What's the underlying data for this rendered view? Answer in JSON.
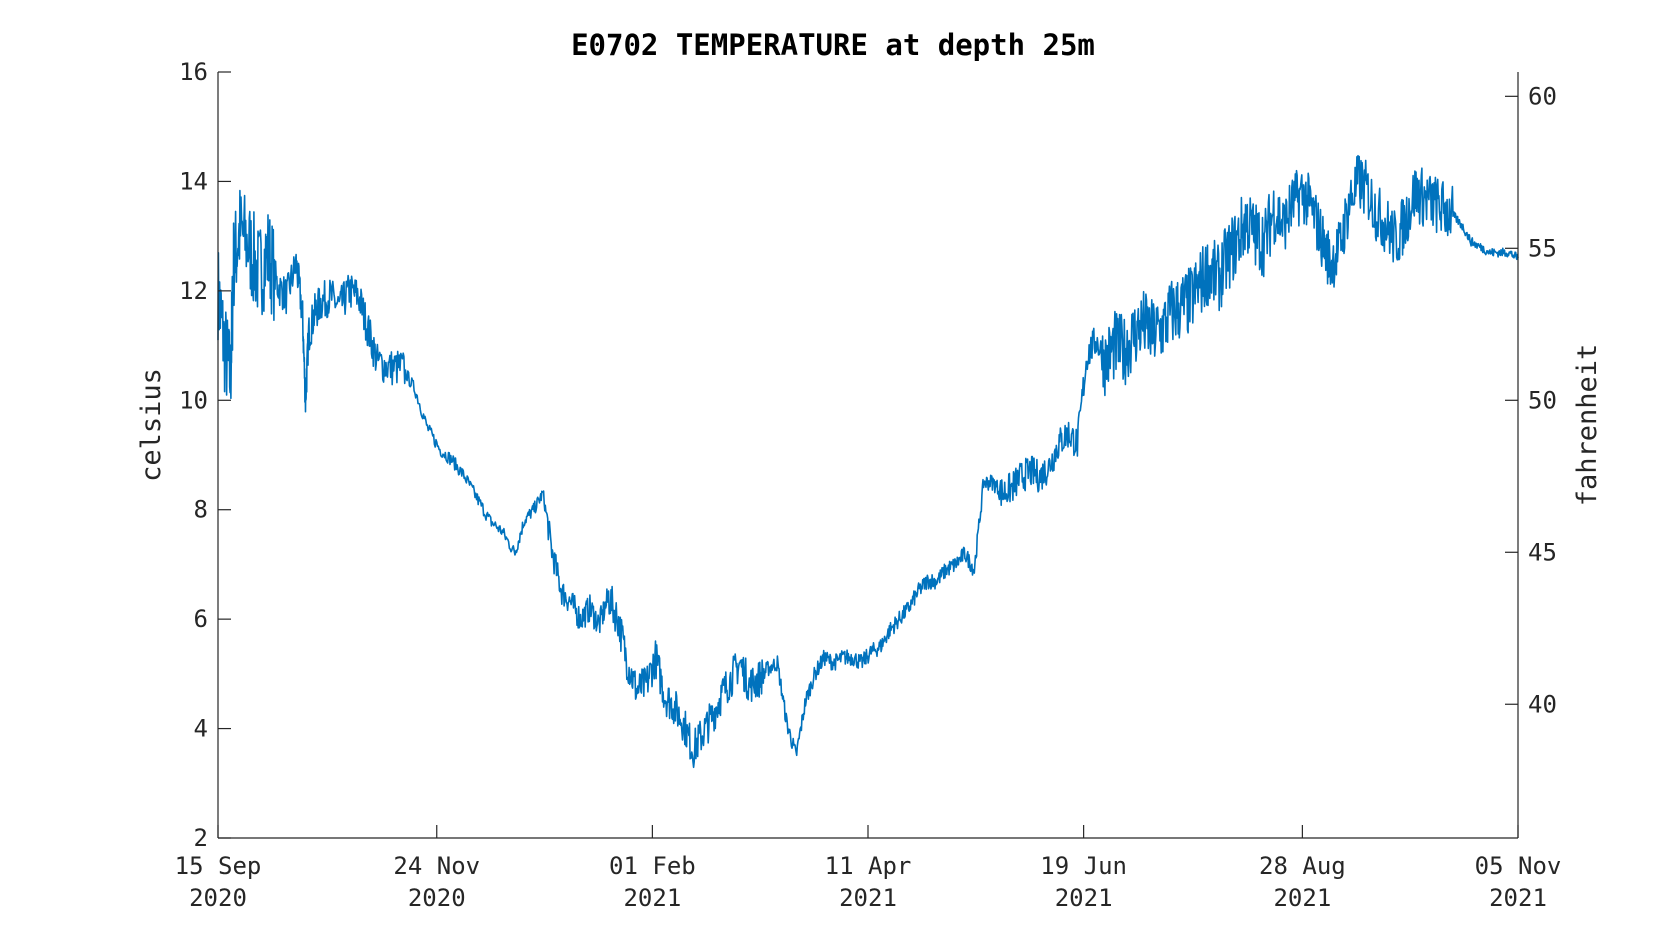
{
  "chart_data": {
    "type": "line",
    "title": "E0702 TEMPERATURE at depth 25m",
    "ylabel": "celsius",
    "y2label": "fahrenheit",
    "xlabel": "",
    "xlim": [
      "2020-09-15",
      "2021-11-05"
    ],
    "ylim": [
      2,
      16
    ],
    "y2lim": [
      35.6,
      60.8
    ],
    "yticks": [
      2,
      4,
      6,
      8,
      10,
      12,
      14,
      16
    ],
    "y2ticks": [
      40,
      45,
      50,
      55,
      60
    ],
    "xticks": [
      {
        "date": "2020-09-15",
        "line1": "15 Sep",
        "line2": "2020"
      },
      {
        "date": "2020-11-24",
        "line1": "24 Nov",
        "line2": "2020"
      },
      {
        "date": "2021-02-01",
        "line1": "01 Feb",
        "line2": "2021"
      },
      {
        "date": "2021-04-11",
        "line1": "11 Apr",
        "line2": "2021"
      },
      {
        "date": "2021-06-19",
        "line1": "19 Jun",
        "line2": "2021"
      },
      {
        "date": "2021-08-28",
        "line1": "28 Aug",
        "line2": "2021"
      },
      {
        "date": "2021-11-05",
        "line1": "05 Nov",
        "line2": "2021"
      }
    ],
    "grid": false,
    "color": "#0072BD",
    "series": [
      {
        "name": "",
        "x": [
          "2020-09-15",
          "2020-09-17",
          "2020-09-19",
          "2020-09-20",
          "2020-09-22",
          "2020-09-25",
          "2020-09-28",
          "2020-10-01",
          "2020-10-04",
          "2020-10-07",
          "2020-10-10",
          "2020-10-12",
          "2020-10-13",
          "2020-10-14",
          "2020-10-16",
          "2020-10-18",
          "2020-10-21",
          "2020-10-24",
          "2020-10-27",
          "2020-10-30",
          "2020-11-02",
          "2020-11-05",
          "2020-11-09",
          "2020-11-13",
          "2020-11-17",
          "2020-11-21",
          "2020-11-25",
          "2020-11-29",
          "2020-12-03",
          "2020-12-07",
          "2020-12-11",
          "2020-12-15",
          "2020-12-19",
          "2020-12-22",
          "2020-12-25",
          "2020-12-28",
          "2020-12-31",
          "2021-01-03",
          "2021-01-06",
          "2021-01-09",
          "2021-01-12",
          "2021-01-15",
          "2021-01-18",
          "2021-01-21",
          "2021-01-24",
          "2021-01-27",
          "2021-01-30",
          "2021-02-02",
          "2021-02-05",
          "2021-02-08",
          "2021-02-11",
          "2021-02-14",
          "2021-02-17",
          "2021-02-20",
          "2021-02-23",
          "2021-02-26",
          "2021-03-01",
          "2021-03-04",
          "2021-03-07",
          "2021-03-10",
          "2021-03-13",
          "2021-03-16",
          "2021-03-19",
          "2021-03-22",
          "2021-03-25",
          "2021-03-28",
          "2021-03-31",
          "2021-04-03",
          "2021-04-06",
          "2021-04-09",
          "2021-04-12",
          "2021-04-15",
          "2021-04-18",
          "2021-04-21",
          "2021-04-24",
          "2021-04-27",
          "2021-04-30",
          "2021-05-03",
          "2021-05-06",
          "2021-05-09",
          "2021-05-12",
          "2021-05-15",
          "2021-05-18",
          "2021-05-21",
          "2021-05-24",
          "2021-05-27",
          "2021-05-30",
          "2021-06-02",
          "2021-06-05",
          "2021-06-08",
          "2021-06-11",
          "2021-06-14",
          "2021-06-17",
          "2021-06-20",
          "2021-06-23",
          "2021-06-26",
          "2021-06-29",
          "2021-07-02",
          "2021-07-05",
          "2021-07-08",
          "2021-07-11",
          "2021-07-14",
          "2021-07-17",
          "2021-07-20",
          "2021-07-23",
          "2021-07-26",
          "2021-07-29",
          "2021-08-01",
          "2021-08-04",
          "2021-08-07",
          "2021-08-10",
          "2021-08-13",
          "2021-08-16",
          "2021-08-19",
          "2021-08-22",
          "2021-08-25",
          "2021-08-28",
          "2021-08-31",
          "2021-09-03",
          "2021-09-06",
          "2021-09-09",
          "2021-09-12",
          "2021-09-15",
          "2021-09-18",
          "2021-09-21",
          "2021-09-24",
          "2021-09-27",
          "2021-09-30",
          "2021-10-03",
          "2021-10-06",
          "2021-10-09",
          "2021-10-12",
          "2021-10-15",
          "2021-10-18",
          "2021-10-21",
          "2021-10-24",
          "2021-10-27",
          "2021-10-30",
          "2021-11-02",
          "2021-11-05"
        ],
        "values": [
          12.0,
          11.0,
          10.4,
          12.5,
          13.1,
          12.8,
          12.3,
          12.7,
          12.1,
          11.9,
          12.5,
          11.6,
          10.0,
          11.2,
          11.6,
          11.8,
          11.9,
          11.7,
          12.0,
          11.9,
          11.3,
          10.7,
          10.6,
          10.6,
          10.2,
          9.5,
          9.1,
          8.9,
          8.6,
          8.2,
          7.8,
          7.6,
          7.2,
          7.8,
          8.0,
          8.3,
          7.2,
          6.5,
          6.3,
          6.0,
          6.2,
          5.9,
          6.4,
          6.0,
          5.2,
          4.7,
          4.8,
          5.3,
          4.6,
          4.4,
          4.1,
          3.6,
          3.9,
          4.2,
          4.6,
          4.9,
          5.2,
          4.8,
          4.9,
          5.1,
          5.2,
          4.1,
          3.5,
          4.5,
          5.0,
          5.3,
          5.2,
          5.3,
          5.3,
          5.2,
          5.4,
          5.5,
          5.8,
          6.0,
          6.2,
          6.5,
          6.7,
          6.7,
          6.9,
          7.0,
          7.2,
          6.9,
          8.5,
          8.5,
          8.3,
          8.4,
          8.6,
          8.7,
          8.6,
          8.8,
          9.2,
          9.4,
          9.2,
          10.8,
          11.1,
          10.7,
          11.0,
          10.9,
          11.2,
          11.4,
          11.2,
          11.3,
          11.6,
          11.7,
          11.8,
          12.1,
          12.4,
          12.2,
          12.6,
          12.9,
          13.3,
          13.0,
          12.9,
          13.5,
          13.2,
          13.6,
          13.8,
          13.5,
          13.0,
          12.5,
          12.8,
          13.6,
          14.0,
          13.8,
          13.4,
          13.2,
          12.9,
          13.3,
          13.8,
          13.7,
          13.6,
          13.5,
          13.4,
          13.2,
          12.9,
          12.8,
          12.7,
          12.7,
          12.7,
          12.6
        ]
      }
    ]
  }
}
